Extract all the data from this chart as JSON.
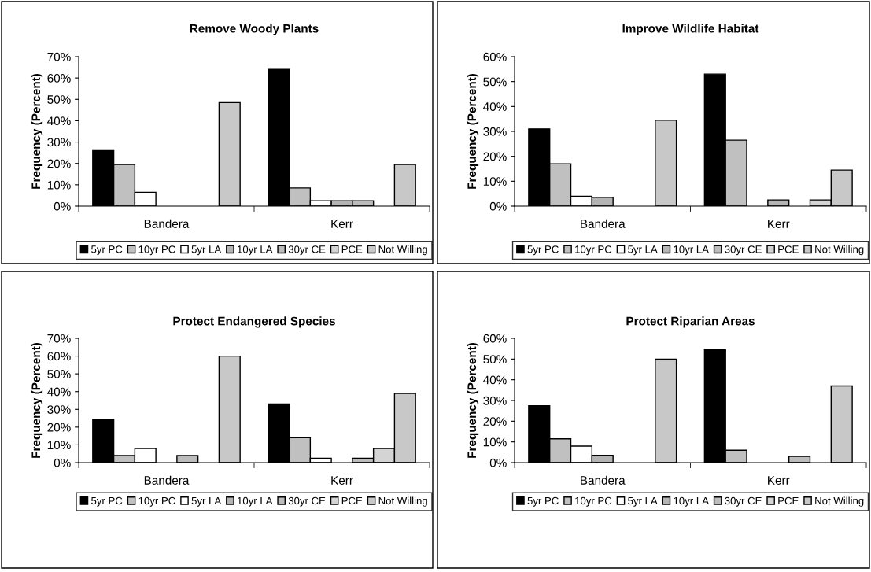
{
  "chart_data": [
    {
      "type": "bar",
      "title": "Remove Woody Plants",
      "ylabel": "Frequency (Percent)",
      "categories": [
        "Bandera",
        "Kerr"
      ],
      "series": [
        {
          "name": "5yr PC",
          "color": "#000000",
          "values": [
            26,
            64
          ]
        },
        {
          "name": "10yr PC",
          "color": "#c0c0c0",
          "values": [
            19.5,
            8.5
          ]
        },
        {
          "name": "5yr LA",
          "color": "#ffffff",
          "values": [
            6.5,
            2.5
          ]
        },
        {
          "name": "10yr LA",
          "color": "#b4b4b4",
          "values": [
            0,
            2.5
          ]
        },
        {
          "name": "30yr CE",
          "color": "#bcbcbc",
          "values": [
            0,
            2.5
          ]
        },
        {
          "name": "PCE",
          "color": "#d4d4d4",
          "values": [
            0,
            0
          ]
        },
        {
          "name": "Not Willing",
          "color": "#c8c8c8",
          "values": [
            48.5,
            19.5
          ]
        }
      ],
      "ylim": [
        0,
        70
      ],
      "yticks": [
        {
          "value": 0,
          "label": "0%"
        },
        {
          "value": 10,
          "label": "10%"
        },
        {
          "value": 20,
          "label": "20%"
        },
        {
          "value": 30,
          "label": "30%"
        },
        {
          "value": 40,
          "label": "40%"
        },
        {
          "value": 50,
          "label": "50%"
        },
        {
          "value": 60,
          "label": "60%"
        },
        {
          "value": 70,
          "label": "70%"
        }
      ],
      "grid": false,
      "legend": "bottom"
    },
    {
      "type": "bar",
      "title": "Improve Wildlife Habitat",
      "ylabel": "Frequency (Percent)",
      "categories": [
        "Bandera",
        "Kerr"
      ],
      "series": [
        {
          "name": "5yr PC",
          "color": "#000000",
          "values": [
            31,
            53
          ]
        },
        {
          "name": "10yr PC",
          "color": "#c0c0c0",
          "values": [
            17,
            26.5
          ]
        },
        {
          "name": "5yr LA",
          "color": "#ffffff",
          "values": [
            4,
            0
          ]
        },
        {
          "name": "10yr LA",
          "color": "#b4b4b4",
          "values": [
            3.5,
            2.5
          ]
        },
        {
          "name": "30yr CE",
          "color": "#bcbcbc",
          "values": [
            0,
            0
          ]
        },
        {
          "name": "PCE",
          "color": "#d4d4d4",
          "values": [
            0,
            2.5
          ]
        },
        {
          "name": "Not Willing",
          "color": "#c8c8c8",
          "values": [
            34.5,
            14.5
          ]
        }
      ],
      "ylim": [
        0,
        60
      ],
      "yticks": [
        {
          "value": 0,
          "label": "0%"
        },
        {
          "value": 10,
          "label": "10%"
        },
        {
          "value": 20,
          "label": "20%"
        },
        {
          "value": 30,
          "label": "30%"
        },
        {
          "value": 40,
          "label": "40%"
        },
        {
          "value": 50,
          "label": "50%"
        },
        {
          "value": 60,
          "label": "60%"
        }
      ],
      "grid": false,
      "legend": "bottom"
    },
    {
      "type": "bar",
      "title": "Protect Endangered Species",
      "ylabel": "Frequency (Percent)",
      "categories": [
        "Bandera",
        "Kerr"
      ],
      "series": [
        {
          "name": "5yr PC",
          "color": "#000000",
          "values": [
            24.5,
            33
          ]
        },
        {
          "name": "10yr PC",
          "color": "#c0c0c0",
          "values": [
            4,
            14
          ]
        },
        {
          "name": "5yr LA",
          "color": "#ffffff",
          "values": [
            8,
            2.5
          ]
        },
        {
          "name": "10yr LA",
          "color": "#b4b4b4",
          "values": [
            0,
            0
          ]
        },
        {
          "name": "30yr CE",
          "color": "#bcbcbc",
          "values": [
            4,
            2.5
          ]
        },
        {
          "name": "PCE",
          "color": "#d4d4d4",
          "values": [
            0,
            8
          ]
        },
        {
          "name": "Not Willing",
          "color": "#c8c8c8",
          "values": [
            60,
            39
          ]
        }
      ],
      "ylim": [
        0,
        70
      ],
      "yticks": [
        {
          "value": 0,
          "label": "0%"
        },
        {
          "value": 10,
          "label": "10%"
        },
        {
          "value": 20,
          "label": "20%"
        },
        {
          "value": 30,
          "label": "30%"
        },
        {
          "value": 40,
          "label": "40%"
        },
        {
          "value": 50,
          "label": "50%"
        },
        {
          "value": 60,
          "label": "60%"
        },
        {
          "value": 70,
          "label": "70%"
        }
      ],
      "grid": false,
      "legend": "bottom"
    },
    {
      "type": "bar",
      "title": "Protect Riparian Areas",
      "ylabel": "Frequency (Percent)",
      "categories": [
        "Bandera",
        "Kerr"
      ],
      "series": [
        {
          "name": "5yr PC",
          "color": "#000000",
          "values": [
            27.5,
            54.5
          ]
        },
        {
          "name": "10yr PC",
          "color": "#c0c0c0",
          "values": [
            11.5,
            6
          ]
        },
        {
          "name": "5yr LA",
          "color": "#ffffff",
          "values": [
            8,
            0
          ]
        },
        {
          "name": "10yr LA",
          "color": "#b4b4b4",
          "values": [
            3.5,
            0
          ]
        },
        {
          "name": "30yr CE",
          "color": "#bcbcbc",
          "values": [
            0,
            3
          ]
        },
        {
          "name": "PCE",
          "color": "#d4d4d4",
          "values": [
            0,
            0
          ]
        },
        {
          "name": "Not Willing",
          "color": "#c8c8c8",
          "values": [
            50,
            37
          ]
        }
      ],
      "ylim": [
        0,
        60
      ],
      "yticks": [
        {
          "value": 0,
          "label": "0%"
        },
        {
          "value": 10,
          "label": "10%"
        },
        {
          "value": 20,
          "label": "20%"
        },
        {
          "value": 30,
          "label": "30%"
        },
        {
          "value": 40,
          "label": "40%"
        },
        {
          "value": 50,
          "label": "50%"
        },
        {
          "value": 60,
          "label": "60%"
        }
      ],
      "grid": false,
      "legend": "bottom"
    }
  ]
}
